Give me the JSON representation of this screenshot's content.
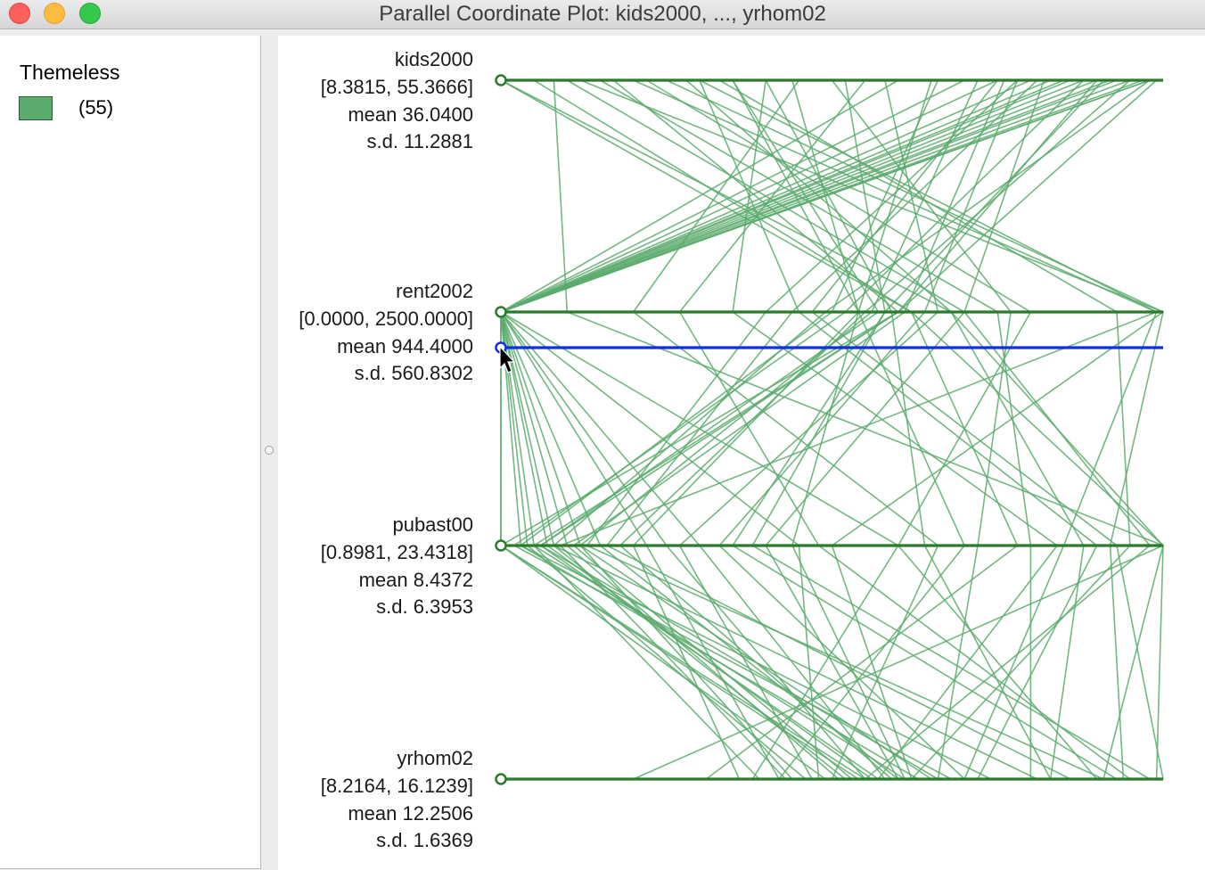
{
  "window": {
    "title": "Parallel Coordinate Plot: kids2000, ..., yrhom02"
  },
  "legend": {
    "title": "Themeless",
    "categories": [
      {
        "label": "(55)",
        "color": "#5aaa6c"
      }
    ]
  },
  "colors": {
    "axis": "#2c7a2c",
    "line": "#5aaa6c",
    "selected_axis": "#1030e0"
  },
  "chart_data": {
    "type": "parallel-coordinates",
    "axes": [
      {
        "name": "kids2000",
        "range": "[8.3815, 55.3666]",
        "mean_label": "mean",
        "mean": "36.0400",
        "sd_label": "s.d.",
        "sd": "11.2881"
      },
      {
        "name": "rent2002",
        "range": "[0.0000, 2500.0000]",
        "mean_label": "mean",
        "mean": "944.4000",
        "sd_label": "s.d.",
        "sd": "560.8302"
      },
      {
        "name": "pubast00",
        "range": "[0.8981, 23.4318]",
        "mean_label": "mean",
        "mean": "8.4372",
        "sd_label": "s.d.",
        "sd": "6.3953"
      },
      {
        "name": "yrhom02",
        "range": "[8.2164, 16.1239]",
        "mean_label": "mean",
        "mean": "12.2506",
        "sd_label": "s.d.",
        "sd": "1.6369"
      }
    ],
    "observations": 55,
    "lines": [
      [
        0.98,
        0.0,
        0.0,
        0.54
      ],
      [
        0.98,
        0.0,
        0.6,
        0.38
      ],
      [
        0.9,
        0.0,
        0.25,
        0.55
      ],
      [
        0.95,
        0.0,
        0.12,
        0.44
      ],
      [
        0.97,
        0.0,
        0.08,
        0.52
      ],
      [
        0.85,
        0.0,
        0.05,
        0.61
      ],
      [
        0.88,
        0.0,
        0.04,
        0.46
      ],
      [
        0.92,
        0.0,
        0.0,
        0.49
      ],
      [
        0.8,
        0.0,
        0.3,
        0.58
      ],
      [
        0.7,
        0.0,
        0.03,
        0.63
      ],
      [
        0.75,
        0.0,
        0.1,
        0.51
      ],
      [
        0.83,
        0.0,
        0.22,
        0.42
      ],
      [
        0.93,
        0.0,
        0.15,
        0.6
      ],
      [
        0.6,
        0.0,
        0.07,
        0.56
      ],
      [
        0.86,
        0.0,
        0.45,
        0.48
      ],
      [
        0.65,
        0.54,
        0.2,
        0.36
      ],
      [
        0.72,
        0.56,
        0.12,
        0.65
      ],
      [
        0.9,
        0.6,
        0.05,
        0.39
      ],
      [
        0.78,
        0.64,
        0.33,
        0.7
      ],
      [
        0.35,
        0.57,
        0.06,
        0.57
      ],
      [
        0.3,
        0.99,
        0.09,
        0.43
      ],
      [
        0.82,
        0.7,
        0.4,
        0.6
      ],
      [
        0.25,
        1.0,
        0.5,
        0.62
      ],
      [
        0.76,
        0.61,
        0.11,
        0.53
      ],
      [
        0.95,
        0.55,
        0.18,
        0.59
      ],
      [
        0.58,
        0.66,
        0.27,
        0.47
      ],
      [
        0.88,
        0.52,
        0.02,
        0.68
      ],
      [
        0.98,
        0.49,
        0.08,
        0.81
      ],
      [
        0.81,
        0.44,
        0.16,
        0.86
      ],
      [
        0.66,
        0.5,
        0.03,
        0.74
      ],
      [
        0.91,
        0.58,
        0.35,
        0.93
      ],
      [
        0.4,
        0.59,
        0.64,
        0.83
      ],
      [
        0.78,
        0.4,
        0.13,
        0.91
      ],
      [
        0.52,
        0.58,
        0.38,
        0.98
      ],
      [
        0.99,
        0.6,
        0.06,
        0.66
      ],
      [
        0.45,
        0.2,
        0.66,
        0.5
      ],
      [
        0.44,
        0.54,
        0.44,
        0.61
      ],
      [
        0.35,
        0.54,
        0.7,
        0.42
      ],
      [
        0.22,
        0.8,
        0.6,
        0.9
      ],
      [
        0.15,
        0.75,
        0.8,
        0.8
      ],
      [
        0.5,
        0.77,
        0.72,
        0.66
      ],
      [
        0.05,
        0.62,
        0.78,
        0.31
      ],
      [
        0.3,
        0.45,
        0.9,
        0.72
      ],
      [
        0.28,
        0.68,
        1.0,
        0.99
      ],
      [
        0.0,
        0.62,
        1.0,
        0.91
      ],
      [
        0.1,
        0.7,
        0.98,
        0.55
      ],
      [
        0.12,
        1.0,
        0.92,
        0.94
      ],
      [
        0.0,
        0.68,
        0.88,
        0.83
      ],
      [
        0.2,
        0.99,
        0.85,
        0.7
      ],
      [
        0.33,
        0.93,
        0.95,
        0.62
      ],
      [
        0.17,
        0.6,
        0.0,
        0.55
      ],
      [
        0.75,
        0.47,
        0.93,
        1.0
      ],
      [
        0.08,
        0.1,
        1.0,
        0.2
      ],
      [
        0.4,
        0.35,
        0.84,
        0.57
      ],
      [
        0.55,
        0.27,
        0.48,
        0.95
      ]
    ]
  }
}
